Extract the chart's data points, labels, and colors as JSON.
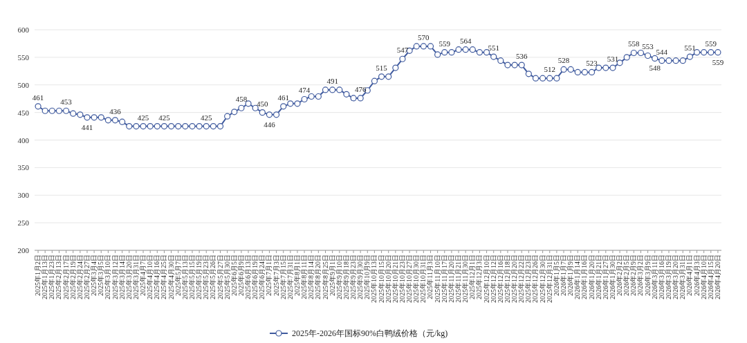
{
  "chart_data": {
    "type": "line",
    "ylim": [
      200,
      600
    ],
    "yticks": [
      200,
      250,
      300,
      350,
      400,
      450,
      500,
      550,
      600
    ],
    "grid": "y",
    "legend": "bottom",
    "marker": "circle",
    "line_style": "solid",
    "categories": [
      "2025年1月2日",
      "2025年1月13日",
      "2025年1月23日",
      "2025年2月13日",
      "2025年2月17日",
      "2025年2月19日",
      "2025年2月24日",
      "2025年2月27日",
      "2025年3月4日",
      "2025年3月5日",
      "2025年3月10日",
      "2025年3月12日",
      "2025年3月14日",
      "2025年3月20日",
      "2025年3月31日",
      "2025年4月7日",
      "2025年4月10日",
      "2025年4月16日",
      "2025年4月25日",
      "2025年4月30日",
      "2025年5月7日",
      "2025年5月13日",
      "2025年5月15日",
      "2025年5月19日",
      "2025年5月23日",
      "2025年5月26日",
      "2025年5月27日",
      "2025年5月30日",
      "2025年6月5日",
      "2025年6月9日",
      "2025年6月13日",
      "2025年6月19日",
      "2025年6月24日",
      "2025年7月1日",
      "2025年7月3日",
      "2025年7月15日",
      "2025年7月31日",
      "2025年8月1日",
      "2025年8月11日",
      "2025年8月14日",
      "2025年8月20日",
      "2025年8月25日",
      "2025年9月1日",
      "2025年9月10日",
      "2025年9月18日",
      "2025年9月23日",
      "2025年9月30日",
      "2025年10月9日",
      "2025年10月13日",
      "2025年10月15日",
      "2025年10月20日",
      "2025年10月21日",
      "2025年10月23日",
      "2025年10月27日",
      "2025年10月30日",
      "2025年10月31日",
      "2025年11月3日",
      "2025年11月10日",
      "2025年11月17日",
      "2025年11月20日",
      "2025年11月21日",
      "2025年11月30日",
      "2025年12月1日",
      "2025年12月3日",
      "2025年12月10日",
      "2025年12月12日",
      "2025年12月16日",
      "2025年12月18日",
      "2025年12月20日",
      "2025年12月22日",
      "2025年12月23日",
      "2025年12月26日",
      "2025年12月30日",
      "2025年12月31日",
      "2026年1月5日",
      "2026年1月7日",
      "2026年1月9日",
      "2026年1月14日",
      "2026年1月16日",
      "2026年1月20日",
      "2026年1月21日",
      "2026年1月27日",
      "2026年1月30日",
      "2026年2月2日",
      "2026年2月5日",
      "2026年2月9日",
      "2026年3月2日",
      "2026年3月9日",
      "2026年3月11日",
      "2026年3月16日",
      "2026年3月19日",
      "2026年3月20日",
      "2026年3月31日",
      "2026年4月1日",
      "2026年4月3日",
      "2026年4月10日",
      "2026年4月15日",
      "2026年4月20日"
    ],
    "series": [
      {
        "name": "2025年-2026年国标90%白鸭绒价格（元/kg)",
        "color": "#3f5a9e",
        "values": [
          461,
          453,
          453,
          453,
          453,
          448,
          446,
          441,
          441,
          441,
          436,
          436,
          433,
          425,
          425,
          425,
          425,
          425,
          425,
          425,
          425,
          425,
          425,
          425,
          425,
          425,
          425,
          443,
          451,
          458,
          466,
          458,
          450,
          446,
          446,
          461,
          466,
          466,
          474,
          479,
          479,
          491,
          491,
          491,
          483,
          476,
          476,
          490,
          507,
          515,
          515,
          531,
          547,
          562,
          570,
          570,
          570,
          555,
          559,
          559,
          564,
          564,
          564,
          559,
          559,
          551,
          544,
          536,
          536,
          536,
          520,
          512,
          512,
          512,
          512,
          528,
          528,
          523,
          523,
          523,
          531,
          531,
          531,
          540,
          550,
          558,
          558,
          553,
          548,
          544,
          544,
          544,
          544,
          551,
          559,
          559,
          559,
          559
        ],
        "value_labels": [
          "461",
          null,
          null,
          null,
          "453",
          null,
          null,
          "441",
          null,
          null,
          null,
          "436",
          null,
          null,
          null,
          "425",
          null,
          null,
          "425",
          null,
          null,
          null,
          null,
          null,
          "425",
          null,
          null,
          null,
          null,
          "458",
          null,
          null,
          "450",
          "446",
          null,
          "461",
          null,
          null,
          "474",
          null,
          null,
          null,
          "491",
          null,
          null,
          null,
          "476",
          null,
          null,
          "515",
          null,
          null,
          "547",
          null,
          null,
          "570",
          null,
          null,
          "559",
          null,
          null,
          "564",
          null,
          null,
          null,
          "551",
          null,
          null,
          null,
          "536",
          null,
          null,
          null,
          "512",
          null,
          "528",
          null,
          null,
          null,
          "523",
          null,
          null,
          "531",
          null,
          null,
          "558",
          null,
          "553",
          "548",
          "544",
          null,
          null,
          null,
          "551",
          null,
          null,
          "559",
          "559"
        ]
      }
    ]
  }
}
